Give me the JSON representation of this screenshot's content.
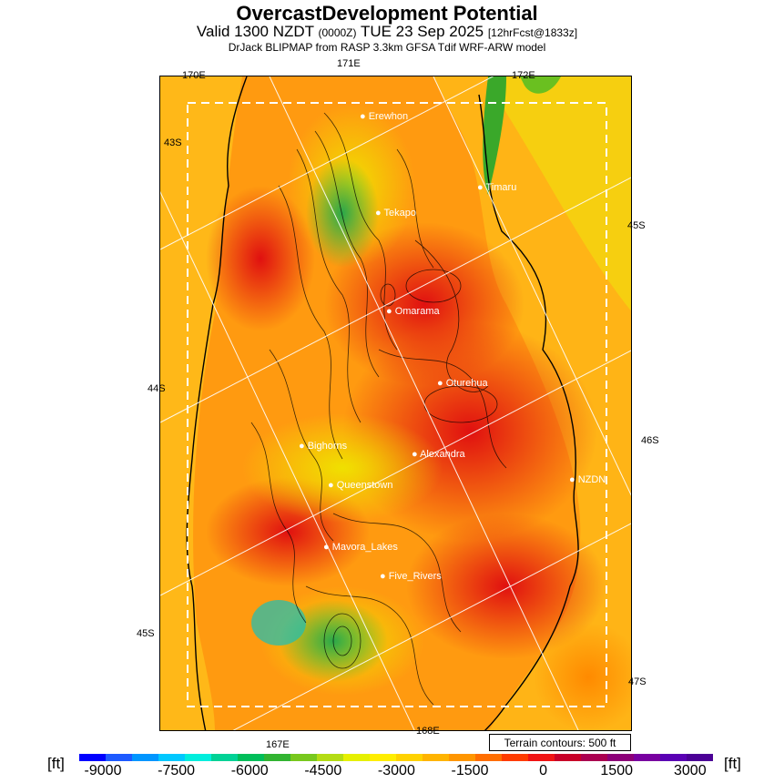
{
  "header": {
    "title": "OvercastDevelopment Potential",
    "valid_prefix": "Valid 1300 NZDT",
    "utc": "(0000Z)",
    "date": "TUE 23 Sep 2025",
    "forecast": "[12hrFcst@1833z]",
    "model": "DrJack BLIPMAP from RASP 3.3km GFSA Tdif WRF-ARW model"
  },
  "axes": {
    "lon_170": "170E",
    "lon_171": "171E",
    "lon_172": "172E",
    "lon_167": "167E",
    "lon_168": "168E",
    "lat_43": "43S",
    "lat_44": "44S",
    "lat_45": "45S",
    "lat_45_right": "45S",
    "lat_46": "46S",
    "lat_47": "47S"
  },
  "places": [
    {
      "name": "Erewhon"
    },
    {
      "name": "Timaru"
    },
    {
      "name": "Tekapo"
    },
    {
      "name": "Omarama"
    },
    {
      "name": "Oturehua"
    },
    {
      "name": "Bighorns"
    },
    {
      "name": "Alexandra"
    },
    {
      "name": "NZDN"
    },
    {
      "name": "Queenstown"
    },
    {
      "name": "Mavora_Lakes"
    },
    {
      "name": "Five_Rivers"
    }
  ],
  "terrain_label": "Terrain contours: 500 ft",
  "colorbar": {
    "unit_left": "[ft]",
    "unit_right": "[ft]",
    "ticks": [
      "-9000",
      "-7500",
      "-6000",
      "-4500",
      "-3000",
      "-1500",
      "0",
      "1500",
      "3000"
    ],
    "colors": [
      "#0000ff",
      "#1e5aff",
      "#0096ff",
      "#00c8ff",
      "#00eedd",
      "#00d296",
      "#00be5a",
      "#32b432",
      "#78c81e",
      "#b4dc14",
      "#e6f000",
      "#ffee00",
      "#ffd200",
      "#ffb400",
      "#ff9600",
      "#ff6e00",
      "#ff3c00",
      "#f01414",
      "#c80028",
      "#aa0050",
      "#8c0078",
      "#7800a0",
      "#5a00b4",
      "#4b0096"
    ]
  }
}
